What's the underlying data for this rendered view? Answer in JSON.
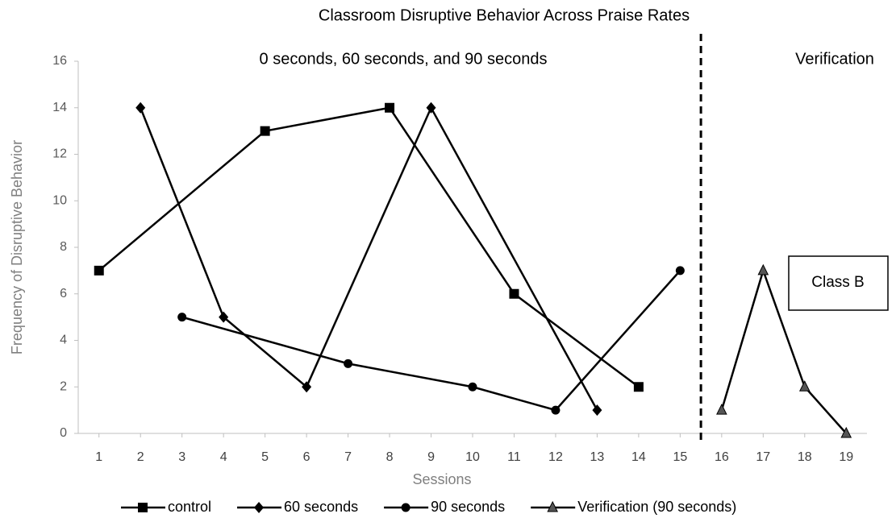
{
  "chart_data": {
    "type": "line",
    "title": "Classroom Disruptive Behavior Across Praise Rates",
    "x_label": "Sessions",
    "y_label": "Frequency of Disruptive Behavior",
    "annotations": [
      "0 seconds, 60 seconds, and 90 seconds",
      "Verification",
      "Class B"
    ],
    "phase_line": 15.5,
    "xlim": [
      0.5,
      19.5
    ],
    "xticks": [
      1,
      2,
      3,
      4,
      5,
      6,
      7,
      8,
      9,
      10,
      11,
      12,
      13,
      14,
      15,
      16,
      17,
      18,
      19
    ],
    "ylim": [
      0,
      16
    ],
    "yticks": [
      0,
      2,
      4,
      6,
      8,
      10,
      12,
      14,
      16
    ],
    "grid": false,
    "legend": "bottom",
    "series": [
      {
        "name": "control",
        "color": "#000000",
        "marker": "square",
        "x": [
          1,
          5,
          8,
          11,
          14
        ],
        "values": [
          7,
          13,
          14,
          6,
          2
        ]
      },
      {
        "name": "60 seconds",
        "color": "#000000",
        "marker": "diamond",
        "x": [
          2,
          4,
          6,
          9,
          13
        ],
        "values": [
          14,
          5,
          2,
          14,
          1
        ]
      },
      {
        "name": "90 seconds",
        "color": "#000000",
        "marker": "circle",
        "x": [
          3,
          7,
          10,
          12,
          15
        ],
        "values": [
          5,
          3,
          2,
          1,
          7
        ]
      },
      {
        "name": "Verification (90 seconds)",
        "color": "#000000",
        "marker": "triangle",
        "x": [
          16,
          17,
          18,
          19
        ],
        "values": [
          1,
          7,
          2,
          0
        ]
      }
    ]
  }
}
